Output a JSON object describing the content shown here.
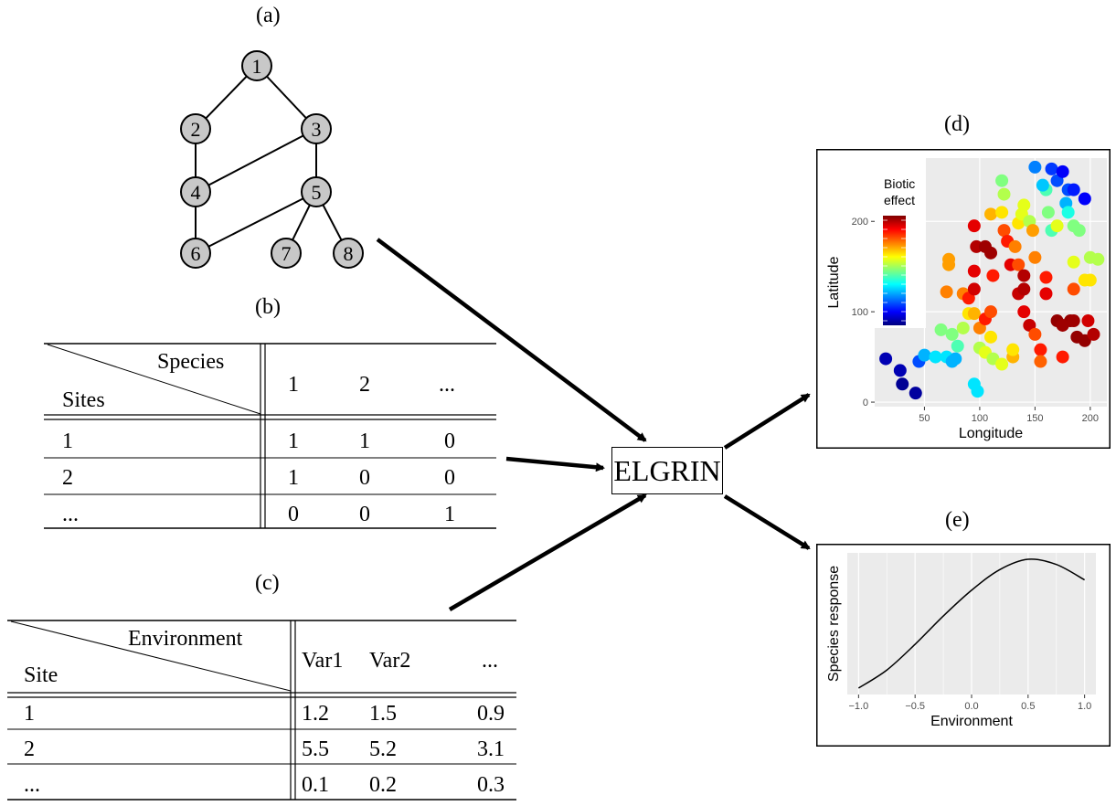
{
  "panels": {
    "a": "(a)",
    "b": "(b)",
    "c": "(c)",
    "d": "(d)",
    "e": "(e)"
  },
  "graph": {
    "nodes": [
      "1",
      "2",
      "3",
      "4",
      "5",
      "6",
      "7",
      "8"
    ],
    "edges": [
      [
        "1",
        "2"
      ],
      [
        "1",
        "3"
      ],
      [
        "2",
        "4"
      ],
      [
        "3",
        "4"
      ],
      [
        "3",
        "5"
      ],
      [
        "4",
        "6"
      ],
      [
        "5",
        "6"
      ],
      [
        "5",
        "7"
      ],
      [
        "5",
        "8"
      ]
    ]
  },
  "species_table": {
    "header_top": "Species",
    "header_bottom": "Sites",
    "columns": [
      "1",
      "2",
      "..."
    ],
    "rows": [
      {
        "site": "1",
        "values": [
          "1",
          "1",
          "0"
        ]
      },
      {
        "site": "2",
        "values": [
          "1",
          "0",
          "0"
        ]
      },
      {
        "site": "...",
        "values": [
          "0",
          "0",
          "1"
        ]
      }
    ]
  },
  "env_table": {
    "header_top": "Environment",
    "header_bottom": "Site",
    "columns": [
      "Var1",
      "Var2",
      "..."
    ],
    "rows": [
      {
        "site": "1",
        "values": [
          "1.2",
          "1.5",
          "0.9"
        ]
      },
      {
        "site": "2",
        "values": [
          "5.5",
          "5.2",
          "3.1"
        ]
      },
      {
        "site": "...",
        "values": [
          "0.1",
          "0.2",
          "0.3"
        ]
      }
    ]
  },
  "center_box": "ELGRIN",
  "chart_data": [
    {
      "type": "scatter",
      "xlabel": "Longitude",
      "ylabel": "Latitude",
      "xticks": [
        "50",
        "100",
        "150",
        "200"
      ],
      "yticks": [
        "0",
        "100",
        "200"
      ],
      "xlim": [
        5,
        215
      ],
      "ylim": [
        -5,
        270
      ],
      "legend_title": [
        "Biotic",
        "effect"
      ],
      "legend_placement": "top-left inside",
      "colormap": "jet (blue = low, red = high)",
      "points": [
        {
          "x": 15,
          "y": 48,
          "v": 0.05
        },
        {
          "x": 28,
          "y": 35,
          "v": 0.05
        },
        {
          "x": 30,
          "y": 20,
          "v": 0.02
        },
        {
          "x": 42,
          "y": 10,
          "v": 0.03
        },
        {
          "x": 45,
          "y": 45,
          "v": 0.2
        },
        {
          "x": 50,
          "y": 52,
          "v": 0.3
        },
        {
          "x": 60,
          "y": 50,
          "v": 0.35
        },
        {
          "x": 70,
          "y": 50,
          "v": 0.35
        },
        {
          "x": 75,
          "y": 45,
          "v": 0.3
        },
        {
          "x": 78,
          "y": 48,
          "v": 0.3
        },
        {
          "x": 65,
          "y": 80,
          "v": 0.5
        },
        {
          "x": 75,
          "y": 75,
          "v": 0.5
        },
        {
          "x": 80,
          "y": 62,
          "v": 0.45
        },
        {
          "x": 85,
          "y": 82,
          "v": 0.55
        },
        {
          "x": 90,
          "y": 98,
          "v": 0.65
        },
        {
          "x": 95,
          "y": 98,
          "v": 0.7
        },
        {
          "x": 100,
          "y": 82,
          "v": 0.75
        },
        {
          "x": 100,
          "y": 60,
          "v": 0.55
        },
        {
          "x": 105,
          "y": 55,
          "v": 0.6
        },
        {
          "x": 110,
          "y": 72,
          "v": 0.65
        },
        {
          "x": 112,
          "y": 48,
          "v": 0.55
        },
        {
          "x": 120,
          "y": 42,
          "v": 0.6
        },
        {
          "x": 130,
          "y": 50,
          "v": 0.7
        },
        {
          "x": 130,
          "y": 58,
          "v": 0.65
        },
        {
          "x": 95,
          "y": 20,
          "v": 0.35
        },
        {
          "x": 98,
          "y": 12,
          "v": 0.35
        },
        {
          "x": 105,
          "y": 92,
          "v": 0.85
        },
        {
          "x": 70,
          "y": 122,
          "v": 0.75
        },
        {
          "x": 72,
          "y": 152,
          "v": 0.72
        },
        {
          "x": 72,
          "y": 158,
          "v": 0.72
        },
        {
          "x": 85,
          "y": 120,
          "v": 0.75
        },
        {
          "x": 90,
          "y": 115,
          "v": 0.85
        },
        {
          "x": 95,
          "y": 125,
          "v": 0.92
        },
        {
          "x": 95,
          "y": 145,
          "v": 0.9
        },
        {
          "x": 95,
          "y": 195,
          "v": 0.9
        },
        {
          "x": 97,
          "y": 172,
          "v": 0.95
        },
        {
          "x": 105,
          "y": 172,
          "v": 0.97
        },
        {
          "x": 110,
          "y": 165,
          "v": 0.97
        },
        {
          "x": 112,
          "y": 140,
          "v": 0.85
        },
        {
          "x": 110,
          "y": 100,
          "v": 0.8
        },
        {
          "x": 110,
          "y": 208,
          "v": 0.7
        },
        {
          "x": 120,
          "y": 210,
          "v": 0.65
        },
        {
          "x": 122,
          "y": 190,
          "v": 0.8
        },
        {
          "x": 125,
          "y": 178,
          "v": 0.85
        },
        {
          "x": 120,
          "y": 245,
          "v": 0.5
        },
        {
          "x": 122,
          "y": 230,
          "v": 0.55
        },
        {
          "x": 128,
          "y": 152,
          "v": 0.9
        },
        {
          "x": 135,
          "y": 152,
          "v": 0.8
        },
        {
          "x": 135,
          "y": 120,
          "v": 0.93
        },
        {
          "x": 140,
          "y": 140,
          "v": 0.95
        },
        {
          "x": 140,
          "y": 125,
          "v": 0.95
        },
        {
          "x": 140,
          "y": 100,
          "v": 0.9
        },
        {
          "x": 132,
          "y": 172,
          "v": 0.75
        },
        {
          "x": 135,
          "y": 198,
          "v": 0.65
        },
        {
          "x": 138,
          "y": 208,
          "v": 0.6
        },
        {
          "x": 140,
          "y": 218,
          "v": 0.6
        },
        {
          "x": 145,
          "y": 200,
          "v": 0.55
        },
        {
          "x": 148,
          "y": 190,
          "v": 0.72
        },
        {
          "x": 150,
          "y": 160,
          "v": 0.75
        },
        {
          "x": 145,
          "y": 85,
          "v": 0.93
        },
        {
          "x": 150,
          "y": 75,
          "v": 0.8
        },
        {
          "x": 155,
          "y": 58,
          "v": 0.85
        },
        {
          "x": 155,
          "y": 45,
          "v": 0.78
        },
        {
          "x": 160,
          "y": 120,
          "v": 0.9
        },
        {
          "x": 160,
          "y": 138,
          "v": 0.85
        },
        {
          "x": 162,
          "y": 210,
          "v": 0.5
        },
        {
          "x": 160,
          "y": 235,
          "v": 0.45
        },
        {
          "x": 165,
          "y": 190,
          "v": 0.45
        },
        {
          "x": 150,
          "y": 260,
          "v": 0.25
        },
        {
          "x": 157,
          "y": 240,
          "v": 0.32
        },
        {
          "x": 165,
          "y": 258,
          "v": 0.18
        },
        {
          "x": 170,
          "y": 245,
          "v": 0.2
        },
        {
          "x": 175,
          "y": 255,
          "v": 0.12
        },
        {
          "x": 178,
          "y": 220,
          "v": 0.3
        },
        {
          "x": 180,
          "y": 235,
          "v": 0.2
        },
        {
          "x": 185,
          "y": 235,
          "v": 0.15
        },
        {
          "x": 195,
          "y": 225,
          "v": 0.12
        },
        {
          "x": 180,
          "y": 210,
          "v": 0.4
        },
        {
          "x": 185,
          "y": 195,
          "v": 0.5
        },
        {
          "x": 190,
          "y": 190,
          "v": 0.5
        },
        {
          "x": 170,
          "y": 195,
          "v": 0.6
        },
        {
          "x": 170,
          "y": 90,
          "v": 0.98
        },
        {
          "x": 175,
          "y": 50,
          "v": 0.85
        },
        {
          "x": 182,
          "y": 90,
          "v": 0.98
        },
        {
          "x": 185,
          "y": 90,
          "v": 0.97
        },
        {
          "x": 185,
          "y": 125,
          "v": 0.8
        },
        {
          "x": 185,
          "y": 155,
          "v": 0.6
        },
        {
          "x": 188,
          "y": 72,
          "v": 0.98
        },
        {
          "x": 195,
          "y": 68,
          "v": 0.98
        },
        {
          "x": 198,
          "y": 90,
          "v": 0.92
        },
        {
          "x": 203,
          "y": 75,
          "v": 0.95
        },
        {
          "x": 195,
          "y": 135,
          "v": 0.65
        },
        {
          "x": 200,
          "y": 135,
          "v": 0.65
        },
        {
          "x": 200,
          "y": 160,
          "v": 0.55
        },
        {
          "x": 207,
          "y": 158,
          "v": 0.55
        },
        {
          "x": 175,
          "y": 85,
          "v": 0.97
        }
      ]
    },
    {
      "type": "line",
      "xlabel": "Environment",
      "ylabel": "Species response",
      "xticks": [
        "−1.0",
        "−0.5",
        "0.0",
        "0.5",
        "1.0"
      ],
      "xlim": [
        -1.1,
        1.1
      ],
      "ylim": [
        -0.05,
        1.05
      ],
      "yticks_shown": false,
      "function": "shifted logistic-like curve, peak near x = 0.5",
      "x": [
        -1.0,
        -0.75,
        -0.5,
        -0.25,
        0.0,
        0.25,
        0.5,
        0.75,
        1.0
      ],
      "y": [
        0.0,
        0.14,
        0.34,
        0.56,
        0.76,
        0.92,
        1.0,
        0.96,
        0.84
      ]
    }
  ]
}
